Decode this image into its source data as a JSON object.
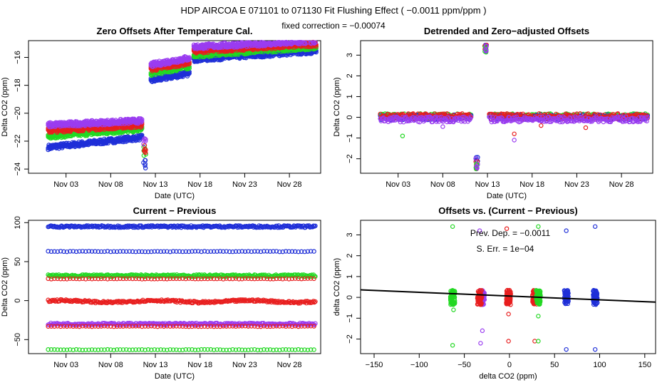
{
  "header": {
    "title": "HDP    AIRCOA E    071101 to 071130    Fit Flushing Effect ( −0.0011 ppm/ppm )",
    "subtitle": "fixed correction = −0.00074"
  },
  "colors": {
    "blue": "#1f2fd8",
    "red": "#e81e1e",
    "green": "#22d822",
    "purple": "#9a3cf0"
  },
  "chart_data": [
    {
      "id": "p1",
      "type": "scatter",
      "title": "Zero Offsets After Temperature Cal.",
      "xlabel": "Date (UTC)",
      "ylabel": "Delta CO2 (ppm)",
      "xlim": [
        -1.2,
        31.5
      ],
      "ylim": [
        -24.3,
        -14.8
      ],
      "xticks": [
        3,
        8,
        13,
        18,
        23,
        28
      ],
      "xticklabels": [
        "Nov 03",
        "Nov 08",
        "Nov 13",
        "Nov 18",
        "Nov 23",
        "Nov 28"
      ],
      "yticks": [
        -24,
        -22,
        -20,
        -18,
        -16
      ],
      "yticklabels": [
        "−24",
        "−22",
        "−20",
        "−18",
        "−16"
      ],
      "series": [
        {
          "name": "blue",
          "segments": [
            [
              1,
              -22.5,
              11.5,
              -21.8
            ],
            [
              12.5,
              -17.7,
              16.8,
              -17.2
            ],
            [
              17.3,
              -16.2,
              31,
              -15.6
            ]
          ],
          "drop": [
            11.8,
            -23.7
          ]
        },
        {
          "name": "green",
          "segments": [
            [
              1,
              -21.7,
              11.5,
              -21.2
            ],
            [
              12.5,
              -17.2,
              16.8,
              -16.7
            ],
            [
              17.3,
              -15.9,
              31,
              -15.3
            ]
          ],
          "drop": [
            11.8,
            -22.7
          ]
        },
        {
          "name": "red",
          "segments": [
            [
              1,
              -21.3,
              11.5,
              -20.9
            ],
            [
              12.5,
              -16.9,
              16.8,
              -16.4
            ],
            [
              17.3,
              -15.6,
              31,
              -15.1
            ]
          ],
          "drop": [
            11.8,
            -22.6
          ]
        },
        {
          "name": "purple",
          "segments": [
            [
              1,
              -20.9,
              11.5,
              -20.6
            ],
            [
              12.5,
              -16.6,
              16.8,
              -16.1
            ],
            [
              17.3,
              -15.3,
              31,
              -14.9
            ]
          ],
          "drop": [
            11.8,
            -22.0
          ]
        }
      ]
    },
    {
      "id": "p2",
      "type": "scatter",
      "title": "Detrended and Zero−adjusted Offsets",
      "xlabel": "Date (UTC)",
      "ylabel": "Delta CO2 (ppm)",
      "xlim": [
        -1.2,
        31.5
      ],
      "ylim": [
        -2.7,
        3.7
      ],
      "xticks": [
        3,
        8,
        13,
        18,
        23,
        28
      ],
      "xticklabels": [
        "Nov 03",
        "Nov 08",
        "Nov 13",
        "Nov 18",
        "Nov 23",
        "Nov 28"
      ],
      "yticks": [
        -2,
        -1,
        0,
        1,
        2,
        3
      ],
      "yticklabels": [
        "−2",
        "−1",
        "0",
        "1",
        "2",
        "3"
      ],
      "series": [
        {
          "name": "green",
          "level": 0.05
        },
        {
          "name": "blue",
          "level": 0.0
        },
        {
          "name": "red",
          "level": 0.05
        },
        {
          "name": "purple",
          "level": -0.1
        }
      ],
      "spikes": {
        "low": [
          11.8,
          -2.2
        ],
        "high": [
          12.8,
          3.3
        ]
      }
    },
    {
      "id": "p3",
      "type": "scatter",
      "title": "Current − Previous",
      "xlabel": "Date (UTC)",
      "ylabel": "Delta CO2 (ppm)",
      "xlim": [
        -1.2,
        31.5
      ],
      "ylim": [
        -68,
        103
      ],
      "xticks": [
        3,
        8,
        13,
        18,
        23,
        28
      ],
      "xticklabels": [
        "Nov 03",
        "Nov 08",
        "Nov 13",
        "Nov 18",
        "Nov 23",
        "Nov 28"
      ],
      "yticks": [
        -50,
        0,
        50,
        100
      ],
      "yticklabels": [
        "−50",
        "0",
        "50",
        "100"
      ],
      "series": [
        {
          "name": "blue",
          "level": 95
        },
        {
          "name": "blue",
          "level": 63
        },
        {
          "name": "green",
          "level": 32
        },
        {
          "name": "red",
          "level": 28
        },
        {
          "name": "red",
          "level": -1
        },
        {
          "name": "purple",
          "level": -30
        },
        {
          "name": "red",
          "level": -33
        },
        {
          "name": "green",
          "level": -63
        }
      ]
    },
    {
      "id": "p4",
      "type": "scatter",
      "title": "Offsets vs. (Current − Previous)",
      "xlabel": "delta CO2 (ppm)",
      "ylabel": "delta CO2 (ppm)",
      "xlim": [
        -165,
        162
      ],
      "ylim": [
        -2.7,
        3.7
      ],
      "xticks": [
        -150,
        -100,
        -50,
        0,
        50,
        100,
        150
      ],
      "xticklabels": [
        "−150",
        "−100",
        "−50",
        "0",
        "50",
        "100",
        "150"
      ],
      "yticks": [
        -2,
        -1,
        0,
        1,
        2,
        3
      ],
      "yticklabels": [
        "−2",
        "−1",
        "0",
        "1",
        "2",
        "3"
      ],
      "fit": {
        "slope": -0.0011,
        "intercept": 0,
        "x": [
          -165,
          162
        ]
      },
      "annotations": [
        "Prev. Dep. = −0.0011",
        "S. Err. = 1e−04"
      ],
      "clusters": [
        {
          "name": "green",
          "x": -63
        },
        {
          "name": "purple",
          "x": -30
        },
        {
          "name": "red",
          "x": -33
        },
        {
          "name": "red",
          "x": -1
        },
        {
          "name": "red",
          "x": 28
        },
        {
          "name": "green",
          "x": 32
        },
        {
          "name": "blue",
          "x": 63
        },
        {
          "name": "blue",
          "x": 95
        }
      ]
    }
  ]
}
